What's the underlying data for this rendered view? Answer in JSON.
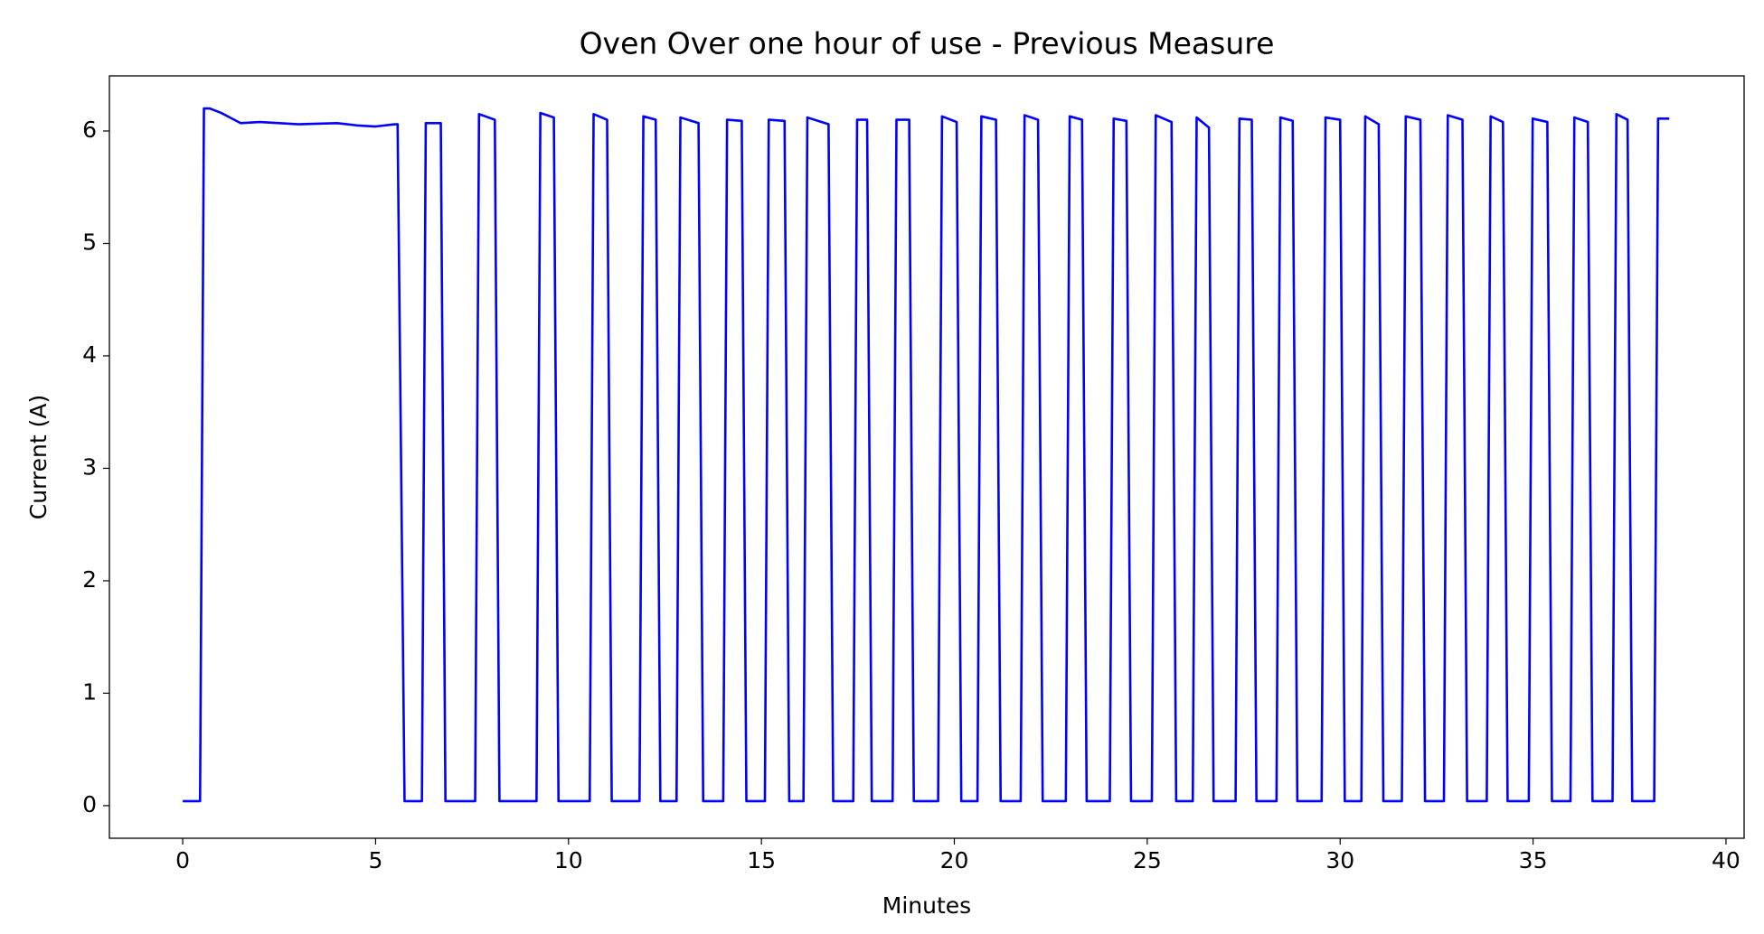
{
  "chart_data": {
    "type": "line",
    "title": "Oven Over one hour of use -  Previous Measure",
    "x_label": "Minutes",
    "y_label": "Current (A)",
    "xlim": [
      -1.9,
      40.47
    ],
    "ylim": [
      -0.29,
      6.49
    ],
    "xticks": [
      0,
      5,
      10,
      15,
      20,
      25,
      30,
      35,
      40
    ],
    "yticks": [
      0,
      1,
      2,
      3,
      4,
      5,
      6
    ],
    "grid": false,
    "series": [
      {
        "name": "Current",
        "color": "#0000ff",
        "x": [
          0,
          0.45,
          0.55,
          0.7,
          1.0,
          1.5,
          2.0,
          3.0,
          4.0,
          4.5,
          5.0,
          5.5,
          5.57,
          5.75,
          6.2,
          6.3,
          6.69,
          6.81,
          7.58,
          7.68,
          8.09,
          8.21,
          9.17,
          9.27,
          9.62,
          9.74,
          10.55,
          10.65,
          11.0,
          11.12,
          11.84,
          11.94,
          12.26,
          12.38,
          12.8,
          12.9,
          13.37,
          13.49,
          14.01,
          14.11,
          14.49,
          14.61,
          15.09,
          15.19,
          15.6,
          15.72,
          16.09,
          16.19,
          16.74,
          16.86,
          17.38,
          17.48,
          17.74,
          17.86,
          18.4,
          18.5,
          18.83,
          18.95,
          19.58,
          19.68,
          20.06,
          20.18,
          20.6,
          20.7,
          21.08,
          21.2,
          21.72,
          21.82,
          22.17,
          22.29,
          22.89,
          22.99,
          23.31,
          23.43,
          24.03,
          24.13,
          24.46,
          24.58,
          25.12,
          25.22,
          25.63,
          25.75,
          26.18,
          26.28,
          26.6,
          26.72,
          27.29,
          27.39,
          27.71,
          27.83,
          28.35,
          28.45,
          28.77,
          28.89,
          29.52,
          29.62,
          30.0,
          30.12,
          30.55,
          30.65,
          31.0,
          31.12,
          31.6,
          31.7,
          32.08,
          32.2,
          32.69,
          32.79,
          33.17,
          33.29,
          33.8,
          33.9,
          34.22,
          34.34,
          34.89,
          34.99,
          35.37,
          35.49,
          35.97,
          36.07,
          36.42,
          36.54,
          37.06,
          37.16,
          37.45,
          37.57,
          38.14,
          38.24,
          38.53
        ],
        "values": [
          0.04,
          0.04,
          6.2,
          6.2,
          6.16,
          6.07,
          6.08,
          6.06,
          6.07,
          6.05,
          6.04,
          6.06,
          6.06,
          0.04,
          0.04,
          6.07,
          6.07,
          0.04,
          0.04,
          6.15,
          6.1,
          0.04,
          0.04,
          6.16,
          6.12,
          0.04,
          0.04,
          6.15,
          6.1,
          0.04,
          0.04,
          6.13,
          6.1,
          0.04,
          0.04,
          6.12,
          6.07,
          0.04,
          0.04,
          6.1,
          6.09,
          0.04,
          0.04,
          6.1,
          6.09,
          0.04,
          0.04,
          6.12,
          6.06,
          0.04,
          0.04,
          6.1,
          6.1,
          0.04,
          0.04,
          6.1,
          6.1,
          0.04,
          0.04,
          6.13,
          6.08,
          0.04,
          0.04,
          6.13,
          6.1,
          0.04,
          0.04,
          6.14,
          6.1,
          0.04,
          0.04,
          6.13,
          6.1,
          0.04,
          0.04,
          6.11,
          6.09,
          0.04,
          0.04,
          6.14,
          6.08,
          0.04,
          0.04,
          6.12,
          6.03,
          0.04,
          0.04,
          6.11,
          6.1,
          0.04,
          0.04,
          6.12,
          6.09,
          0.04,
          0.04,
          6.12,
          6.1,
          0.04,
          0.04,
          6.13,
          6.06,
          0.04,
          0.04,
          6.13,
          6.1,
          0.04,
          0.04,
          6.14,
          6.1,
          0.04,
          0.04,
          6.13,
          6.08,
          0.04,
          0.04,
          6.11,
          6.08,
          0.04,
          0.04,
          6.12,
          6.08,
          0.04,
          0.04,
          6.15,
          6.1,
          0.04,
          0.04,
          6.11,
          6.11
        ]
      }
    ]
  }
}
